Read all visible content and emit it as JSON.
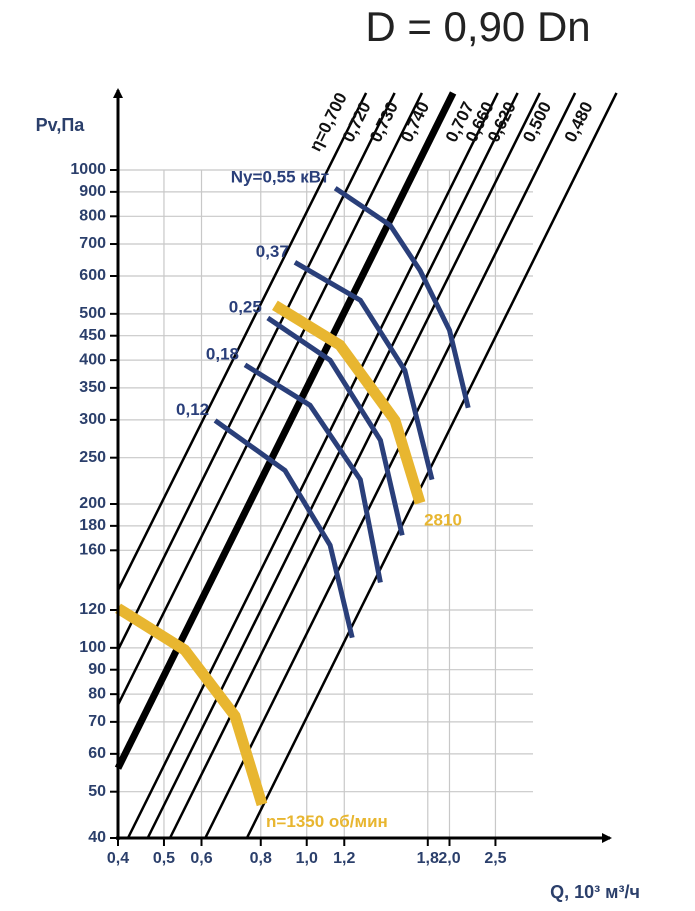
{
  "chart_data": {
    "type": "line",
    "title": "D = 0,90 Dn",
    "y_label": "Pv,Па",
    "x_label": "Q, 10³ м³/ч",
    "xlog": true,
    "ylog": true,
    "grid": true,
    "xlim": [
      0.4,
      3.0
    ],
    "ylim": [
      40,
      1000
    ],
    "xticks": [
      {
        "value": 0.4,
        "label": "0,4"
      },
      {
        "value": 0.5,
        "label": "0,5"
      },
      {
        "value": 0.6,
        "label": "0,6"
      },
      {
        "value": 0.8,
        "label": "0,8"
      },
      {
        "value": 1.0,
        "label": "1,0"
      },
      {
        "value": 1.2,
        "label": "1,2"
      },
      {
        "value": 1.8,
        "label": "1,8"
      },
      {
        "value": 2.0,
        "label": "2,0"
      },
      {
        "value": 2.5,
        "label": "2,5"
      }
    ],
    "yticks": [
      40,
      50,
      60,
      70,
      80,
      90,
      100,
      120,
      160,
      180,
      200,
      250,
      300,
      350,
      400,
      450,
      500,
      600,
      700,
      800,
      900,
      1000
    ],
    "efficiency_lines": [
      {
        "name": "η=0,700",
        "color": "#000000",
        "width": 2.5,
        "x": [
          0.4,
          1.334
        ],
        "values": [
          132,
          1450
        ]
      },
      {
        "name": "0,720",
        "color": "#000000",
        "width": 2.5,
        "x": [
          0.4,
          1.532
        ],
        "values": [
          99,
          1450
        ]
      },
      {
        "name": "0,730",
        "color": "#000000",
        "width": 2.5,
        "x": [
          0.4,
          1.749
        ],
        "values": [
          76,
          1450
        ]
      },
      {
        "name": "0,740",
        "color": "#000000",
        "width": 7,
        "x": [
          0.4,
          2.035
        ],
        "values": [
          56,
          1450
        ]
      },
      {
        "name": "0,707",
        "color": "#000000",
        "width": 2.5,
        "x": [
          0.42,
          2.527
        ],
        "values": [
          40,
          1450
        ]
      },
      {
        "name": "0,660",
        "color": "#000000",
        "width": 2.5,
        "x": [
          0.462,
          2.784
        ],
        "values": [
          40,
          1450
        ]
      },
      {
        "name": "0,620",
        "color": "#000000",
        "width": 2.5,
        "x": [
          0.515,
          3.1
        ],
        "values": [
          40,
          1450
        ]
      },
      {
        "name": "0,500",
        "color": "#000000",
        "width": 2.5,
        "x": [
          0.611,
          3.68
        ],
        "values": [
          40,
          1450
        ]
      },
      {
        "name": "0,480",
        "color": "#000000",
        "width": 2.5,
        "x": [
          0.748,
          4.5
        ],
        "values": [
          40,
          1450
        ]
      }
    ],
    "power_curves": [
      {
        "name": "Ny=0,55 кВт",
        "color": "#2a3f7a",
        "width": 5,
        "x": [
          1.148,
          1.5,
          1.734,
          2.0,
          2.19
        ],
        "values": [
          916,
          766,
          616,
          462,
          318
        ]
      },
      {
        "name": "0,37",
        "color": "#2a3f7a",
        "width": 5,
        "x": [
          0.944,
          1.297,
          1.61,
          1.837
        ],
        "values": [
          641,
          534,
          381,
          225
        ]
      },
      {
        "name": "0,25",
        "color": "#2a3f7a",
        "width": 5,
        "x": [
          0.828,
          1.12,
          1.43,
          1.59
        ],
        "values": [
          490,
          400,
          272,
          172
        ]
      },
      {
        "name": "0,18",
        "color": "#2a3f7a",
        "width": 5,
        "x": [
          0.741,
          1.016,
          1.297,
          1.43
        ],
        "values": [
          391,
          322,
          225,
          137
        ]
      },
      {
        "name": "0,12",
        "color": "#2a3f7a",
        "width": 5,
        "x": [
          0.641,
          0.9,
          1.12,
          1.247
        ],
        "values": [
          299,
          235,
          164,
          105
        ]
      }
    ],
    "speed_curves": [
      {
        "name": "2810",
        "color": "#e8b630",
        "width": 11,
        "x": [
          0.857,
          1.175,
          1.535,
          1.734
        ],
        "values": [
          521,
          430,
          299,
          201
        ]
      },
      {
        "name": "n=1350 об/мин",
        "color": "#e8b630",
        "width": 11,
        "x": [
          0.4,
          0.553,
          0.706,
          0.805
        ],
        "values": [
          121,
          99,
          72,
          47
        ]
      }
    ]
  }
}
